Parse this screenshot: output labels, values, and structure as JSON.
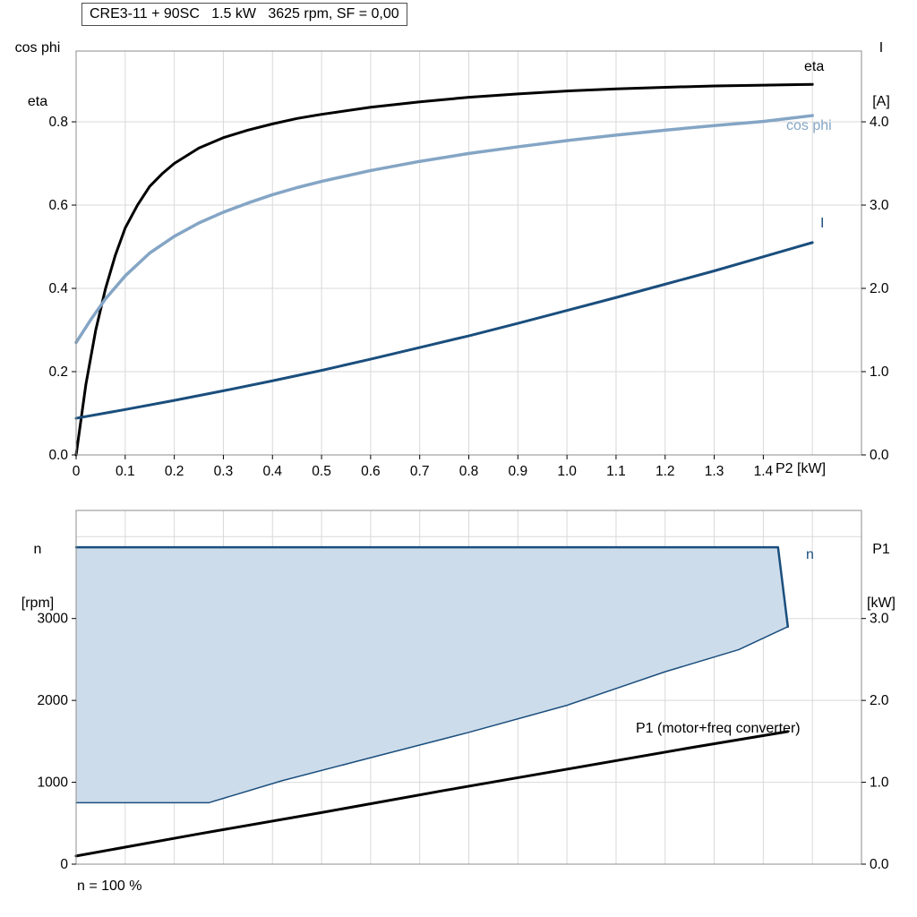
{
  "title": "CRE3-11 + 90SC   1.5 kW   3625 rpm, SF = 0,00",
  "footer": "n = 100 %",
  "colors": {
    "black": "#000000",
    "light_blue": "#84A5C5",
    "dark_blue": "#1A4E7D",
    "fill": "#CDDCEA",
    "grid": "#D9D9D9",
    "frame": "#8C8C8C"
  },
  "axis": {
    "top_left_line1": "cos phi",
    "top_left_line2": "eta",
    "top_right_line1": "I",
    "top_right_line2": "[A]",
    "x_axis": "P2 [kW]",
    "bottom_left_line1": "n",
    "bottom_left_line2": "[rpm]",
    "bottom_right_line1": "P1",
    "bottom_right_line2": "[kW]"
  },
  "labels": {
    "eta": "eta",
    "cos_phi": "cos phi",
    "current": "I",
    "speed": "n",
    "p1_curve": "P1 (motor+freq converter)"
  },
  "chart_data": [
    {
      "type": "line",
      "title": "CRE3-11 + 90SC 1.5 kW 3625 rpm, SF = 0,00",
      "xlabel": "P2 [kW]",
      "ylabel_left": "cos phi / eta",
      "ylabel_right": "I [A]",
      "xlim": [
        0,
        1.6
      ],
      "ylim_left": [
        0,
        0.97
      ],
      "ylim_right": [
        0,
        4.85
      ],
      "xticks": [
        0,
        0.1,
        0.2,
        0.3,
        0.4,
        0.5,
        0.6,
        0.7,
        0.8,
        0.9,
        1.0,
        1.1,
        1.2,
        1.3,
        1.4
      ],
      "xtick_labels": [
        "0",
        "0.1",
        "0.2",
        "0.3",
        "0.4",
        "0.5",
        "0.6",
        "0.7",
        "0.8",
        "0.9",
        "1.0",
        "1.1",
        "1.2",
        "1.3",
        "1.4"
      ],
      "xgrid": [
        0.1,
        0.2,
        0.3,
        0.4,
        0.5,
        0.6,
        0.7,
        0.8,
        0.9,
        1.0,
        1.1,
        1.2,
        1.3,
        1.4,
        1.5
      ],
      "yticks_left": [
        0,
        0.2,
        0.4,
        0.6,
        0.8
      ],
      "ytick_left_labels": [
        "0.0",
        "0.2",
        "0.4",
        "0.6",
        "0.8"
      ],
      "ygrid": [
        0.2,
        0.4,
        0.6,
        0.8
      ],
      "yticks_right": [
        0,
        1,
        2,
        3,
        4
      ],
      "ytick_right_labels": [
        "0.0",
        "1.0",
        "2.0",
        "3.0",
        "4.0"
      ],
      "series": [
        {
          "name": "eta",
          "axis": "left",
          "color": "black",
          "width": 3,
          "points": [
            [
              0,
              0
            ],
            [
              0.02,
              0.17
            ],
            [
              0.04,
              0.3
            ],
            [
              0.06,
              0.4
            ],
            [
              0.08,
              0.48
            ],
            [
              0.1,
              0.545
            ],
            [
              0.125,
              0.6
            ],
            [
              0.15,
              0.645
            ],
            [
              0.175,
              0.675
            ],
            [
              0.2,
              0.7
            ],
            [
              0.25,
              0.737
            ],
            [
              0.3,
              0.762
            ],
            [
              0.35,
              0.78
            ],
            [
              0.4,
              0.795
            ],
            [
              0.45,
              0.808
            ],
            [
              0.5,
              0.818
            ],
            [
              0.6,
              0.835
            ],
            [
              0.7,
              0.848
            ],
            [
              0.8,
              0.859
            ],
            [
              0.9,
              0.867
            ],
            [
              1.0,
              0.874
            ],
            [
              1.1,
              0.879
            ],
            [
              1.2,
              0.883
            ],
            [
              1.3,
              0.886
            ],
            [
              1.4,
              0.888
            ],
            [
              1.5,
              0.89
            ]
          ]
        },
        {
          "name": "cos phi",
          "axis": "left",
          "color": "light_blue",
          "width": 3.5,
          "points": [
            [
              0,
              0.27
            ],
            [
              0.03,
              0.325
            ],
            [
              0.06,
              0.375
            ],
            [
              0.1,
              0.43
            ],
            [
              0.15,
              0.485
            ],
            [
              0.2,
              0.525
            ],
            [
              0.25,
              0.557
            ],
            [
              0.3,
              0.583
            ],
            [
              0.35,
              0.605
            ],
            [
              0.4,
              0.625
            ],
            [
              0.45,
              0.642
            ],
            [
              0.5,
              0.657
            ],
            [
              0.6,
              0.683
            ],
            [
              0.7,
              0.705
            ],
            [
              0.8,
              0.724
            ],
            [
              0.9,
              0.74
            ],
            [
              1.0,
              0.755
            ],
            [
              1.1,
              0.768
            ],
            [
              1.2,
              0.78
            ],
            [
              1.3,
              0.791
            ],
            [
              1.4,
              0.801
            ],
            [
              1.5,
              0.815
            ]
          ]
        },
        {
          "name": "I",
          "axis": "right",
          "color": "dark_blue",
          "width": 3,
          "points": [
            [
              0,
              0.44
            ],
            [
              0.1,
              0.545
            ],
            [
              0.2,
              0.655
            ],
            [
              0.3,
              0.77
            ],
            [
              0.4,
              0.89
            ],
            [
              0.5,
              1.015
            ],
            [
              0.6,
              1.15
            ],
            [
              0.7,
              1.29
            ],
            [
              0.8,
              1.43
            ],
            [
              0.9,
              1.58
            ],
            [
              1.0,
              1.735
            ],
            [
              1.1,
              1.89
            ],
            [
              1.2,
              2.05
            ],
            [
              1.3,
              2.21
            ],
            [
              1.4,
              2.38
            ],
            [
              1.5,
              2.55
            ]
          ]
        }
      ]
    },
    {
      "type": "line+area",
      "xlabel": "",
      "ylabel_left": "n [rpm]",
      "ylabel_right": "P1 [kW]",
      "xlim": [
        0,
        1.6
      ],
      "ylim_left": [
        0,
        4320
      ],
      "ylim_right": [
        0,
        4.32
      ],
      "xticks": [],
      "xtick_labels": [],
      "xgrid": [
        0.1,
        0.2,
        0.3,
        0.4,
        0.5,
        0.6,
        0.7,
        0.8,
        0.9,
        1.0,
        1.1,
        1.2,
        1.3,
        1.4,
        1.5
      ],
      "yticks_left": [
        0,
        1000,
        2000,
        3000
      ],
      "ytick_left_labels": [
        "0",
        "1000",
        "2000",
        "3000"
      ],
      "ygrid": [
        1000,
        2000,
        3000,
        4000
      ],
      "yticks_right": [
        0,
        1,
        2,
        3
      ],
      "ytick_right_labels": [
        "0.0",
        "1.0",
        "2.0",
        "3.0"
      ],
      "area": {
        "between": [
          "n",
          "envelope"
        ],
        "color": "fill"
      },
      "series": [
        {
          "name": "envelope",
          "axis": "left",
          "color": "dark_blue",
          "width": 1.5,
          "points": [
            [
              0,
              750
            ],
            [
              0.27,
              750
            ],
            [
              0.42,
              1020
            ],
            [
              0.6,
              1300
            ],
            [
              0.8,
              1610
            ],
            [
              1.0,
              1940
            ],
            [
              1.2,
              2350
            ],
            [
              1.35,
              2620
            ],
            [
              1.45,
              2900
            ]
          ]
        },
        {
          "name": "n",
          "axis": "left",
          "color": "dark_blue",
          "width": 2.5,
          "points": [
            [
              0,
              3870
            ],
            [
              1.43,
              3870
            ],
            [
              1.45,
              2900
            ]
          ]
        },
        {
          "name": "P1 (motor+freq converter)",
          "axis": "right",
          "color": "black",
          "width": 3,
          "points": [
            [
              0,
              0.1
            ],
            [
              0.25,
              0.37
            ],
            [
              0.5,
              0.63
            ],
            [
              0.75,
              0.9
            ],
            [
              1.0,
              1.16
            ],
            [
              1.25,
              1.42
            ],
            [
              1.45,
              1.62
            ]
          ]
        }
      ]
    }
  ]
}
